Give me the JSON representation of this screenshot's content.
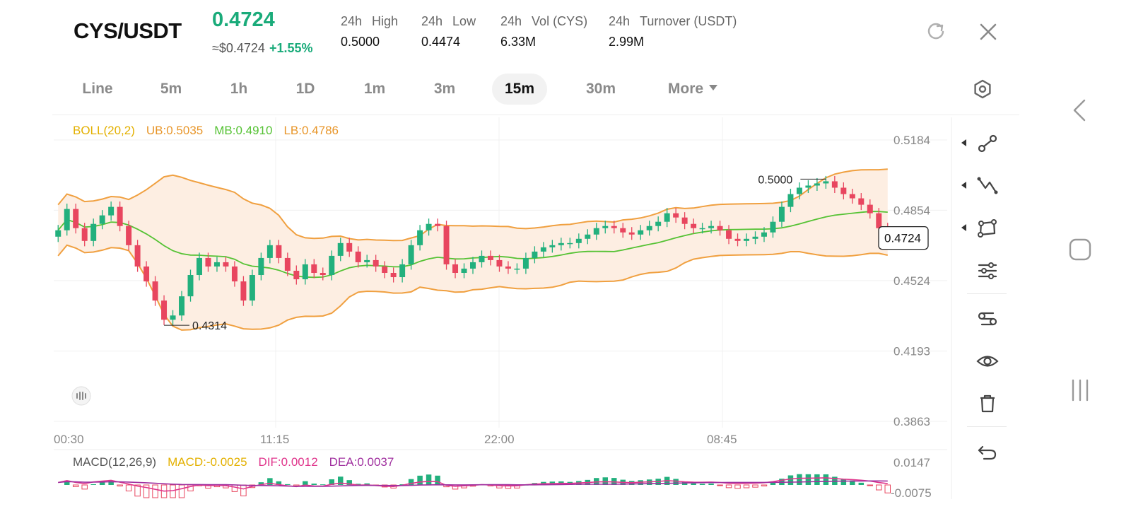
{
  "header": {
    "pair": "CYS/USDT",
    "price": "0.4724",
    "usd_price": "≈$0.4724",
    "change": "+1.55%",
    "stats": [
      {
        "label_a": "24h",
        "label_b": "High",
        "value": "0.5000"
      },
      {
        "label_a": "24h",
        "label_b": "Low",
        "value": "0.4474"
      },
      {
        "label_a": "24h",
        "label_b": "Vol (CYS)",
        "value": "6.33M"
      },
      {
        "label_a": "24h",
        "label_b": "Turnover (USDT)",
        "value": "2.99M"
      }
    ],
    "icons": [
      "refresh-icon",
      "close-icon"
    ]
  },
  "tabs": [
    {
      "label": "Line",
      "active": false
    },
    {
      "label": "5m",
      "active": false
    },
    {
      "label": "1h",
      "active": false
    },
    {
      "label": "1D",
      "active": false
    },
    {
      "label": "1m",
      "active": false
    },
    {
      "label": "3m",
      "active": false
    },
    {
      "label": "15m",
      "active": true
    },
    {
      "label": "30m",
      "active": false
    },
    {
      "label": "More",
      "active": false
    }
  ],
  "indicators": {
    "boll": {
      "name": "BOLL(20,2)",
      "ub": "UB:0.5035",
      "mb": "MB:0.4910",
      "lb": "LB:0.4786"
    },
    "macd": {
      "name": "MACD(12,26,9)",
      "macd": "MACD:-0.0025",
      "dif": "DIF:0.0012",
      "dea": "DEA:0.0037"
    }
  },
  "colors": {
    "up": "#22b07d",
    "down": "#e8465f",
    "boll_band": "#f0a040",
    "boll_fill": "#fdeee2",
    "mid": "#55c234",
    "boll_label": "#e3b000",
    "ub_label": "#e8962a",
    "mb_label": "#55c234",
    "lb_label": "#e8962a",
    "dif": "#e0368c",
    "dea": "#a0309f",
    "macd_label": "#e3b000"
  },
  "chart_data": {
    "type": "candlestick",
    "interval": "15m",
    "ylim": [
      0.3863,
      0.5184
    ],
    "y_ticks": [
      "0.5184",
      "0.4854",
      "0.4524",
      "0.4193",
      "0.3863"
    ],
    "x_ticks": [
      "00:30",
      "11:15",
      "22:00",
      "08:45"
    ],
    "high_marker": "0.5000",
    "low_marker": "0.4314",
    "last_price": "0.4724",
    "macd_y_ticks": [
      "0.0147",
      "-0.0075"
    ],
    "close_path": [
      0.476,
      0.486,
      0.477,
      0.471,
      0.479,
      0.483,
      0.487,
      0.478,
      0.469,
      0.459,
      0.452,
      0.443,
      0.434,
      0.436,
      0.445,
      0.455,
      0.463,
      0.459,
      0.461,
      0.459,
      0.452,
      0.443,
      0.455,
      0.463,
      0.469,
      0.463,
      0.457,
      0.453,
      0.46,
      0.456,
      0.455,
      0.464,
      0.47,
      0.466,
      0.461,
      0.462,
      0.459,
      0.456,
      0.454,
      0.46,
      0.469,
      0.476,
      0.479,
      0.478,
      0.46,
      0.456,
      0.458,
      0.461,
      0.464,
      0.462,
      0.459,
      0.458,
      0.458,
      0.463,
      0.466,
      0.468,
      0.469,
      0.47,
      0.47,
      0.472,
      0.474,
      0.477,
      0.478,
      0.477,
      0.475,
      0.474,
      0.476,
      0.478,
      0.48,
      0.484,
      0.482,
      0.479,
      0.477,
      0.477,
      0.478,
      0.476,
      0.472,
      0.471,
      0.472,
      0.473,
      0.475,
      0.48,
      0.487,
      0.493,
      0.496,
      0.497,
      0.498,
      0.499,
      0.496,
      0.493,
      0.491,
      0.488,
      0.484,
      0.477,
      0.472
    ]
  }
}
